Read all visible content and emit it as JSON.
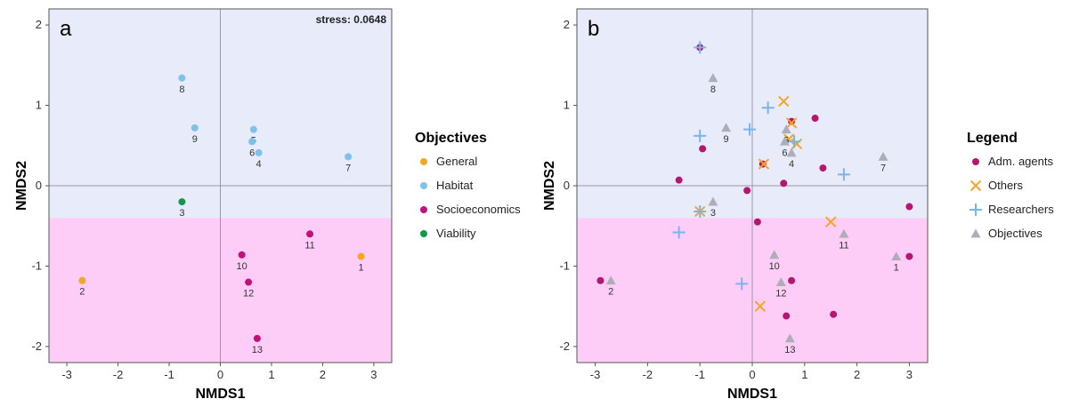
{
  "chart_data": [
    {
      "type": "scatter",
      "panel_label": "a",
      "xlabel": "NMDS1",
      "ylabel": "NMDS2",
      "xlim": [
        -3.35,
        3.35
      ],
      "ylim": [
        -2.2,
        2.2
      ],
      "xticks": [
        -3,
        -2,
        -1,
        0,
        1,
        2,
        3
      ],
      "yticks": [
        -2,
        -1,
        0,
        1,
        2
      ],
      "shaded_bands": [
        {
          "y_from": -0.4,
          "y_to": 2.2,
          "color": "#e8ebfa"
        },
        {
          "y_from": -2.2,
          "y_to": -0.4,
          "color": "#fdcdf7"
        }
      ],
      "annotation": "stress: 0.0648",
      "legend_title": "Objectives",
      "legend_position": "right",
      "series": [
        {
          "name": "General",
          "color": "#f5a623",
          "marker": "circle",
          "points": [
            {
              "x": -2.7,
              "y": -1.18,
              "label": "2"
            },
            {
              "x": 2.75,
              "y": -0.88,
              "label": "1"
            }
          ]
        },
        {
          "name": "Habitat",
          "color": "#7ec1ea",
          "marker": "circle",
          "points": [
            {
              "x": -0.75,
              "y": 1.34,
              "label": "8"
            },
            {
              "x": -0.5,
              "y": 0.72,
              "label": "9"
            },
            {
              "x": 0.65,
              "y": 0.7,
              "label": "5"
            },
            {
              "x": 0.62,
              "y": 0.55,
              "label": "6"
            },
            {
              "x": 0.75,
              "y": 0.41,
              "label": "4"
            },
            {
              "x": 2.5,
              "y": 0.36,
              "label": "7"
            }
          ]
        },
        {
          "name": "Socioeconomics",
          "color": "#c2127a",
          "marker": "circle",
          "points": [
            {
              "x": 1.75,
              "y": -0.6,
              "label": "11"
            },
            {
              "x": 0.42,
              "y": -0.86,
              "label": "10"
            },
            {
              "x": 0.55,
              "y": -1.2,
              "label": "12"
            },
            {
              "x": 0.72,
              "y": -1.9,
              "label": "13"
            }
          ]
        },
        {
          "name": "Viability",
          "color": "#0d9b4b",
          "marker": "circle",
          "points": [
            {
              "x": -0.75,
              "y": -0.2,
              "label": "3"
            }
          ]
        }
      ]
    },
    {
      "type": "scatter",
      "panel_label": "b",
      "xlabel": "NMDS1",
      "ylabel": "NMDS2",
      "xlim": [
        -3.35,
        3.35
      ],
      "ylim": [
        -2.2,
        2.2
      ],
      "xticks": [
        -3,
        -2,
        -1,
        0,
        1,
        2,
        3
      ],
      "yticks": [
        -2,
        -1,
        0,
        1,
        2
      ],
      "shaded_bands": [
        {
          "y_from": -0.4,
          "y_to": 2.2,
          "color": "#e8ebfa"
        },
        {
          "y_from": -2.2,
          "y_to": -0.4,
          "color": "#fdcdf7"
        }
      ],
      "legend_title": "Legend",
      "legend_position": "right",
      "series": [
        {
          "name": "Adm. agents",
          "color": "#b5166f",
          "marker": "circle",
          "points": [
            {
              "x": -1.0,
              "y": 1.72
            },
            {
              "x": -0.95,
              "y": 0.46
            },
            {
              "x": -1.4,
              "y": 0.07
            },
            {
              "x": -0.1,
              "y": -0.06
            },
            {
              "x": 0.2,
              "y": 0.27
            },
            {
              "x": 0.6,
              "y": 0.03
            },
            {
              "x": 0.75,
              "y": 0.8
            },
            {
              "x": 1.2,
              "y": 0.84
            },
            {
              "x": 1.35,
              "y": 0.22
            },
            {
              "x": 0.1,
              "y": -0.45
            },
            {
              "x": 3.0,
              "y": -0.26
            },
            {
              "x": 3.0,
              "y": -0.88
            },
            {
              "x": -2.9,
              "y": -1.18
            },
            {
              "x": 0.75,
              "y": -1.18
            },
            {
              "x": 0.65,
              "y": -1.62
            },
            {
              "x": 1.55,
              "y": -1.6
            }
          ]
        },
        {
          "name": "Others",
          "color": "#f5a623",
          "marker": "x",
          "points": [
            {
              "x": 0.6,
              "y": 1.05
            },
            {
              "x": 0.75,
              "y": 0.78
            },
            {
              "x": 0.7,
              "y": 0.58
            },
            {
              "x": 0.85,
              "y": 0.52
            },
            {
              "x": 0.22,
              "y": 0.27
            },
            {
              "x": 1.5,
              "y": -0.45
            },
            {
              "x": 0.15,
              "y": -1.5
            },
            {
              "x": -1.0,
              "y": -0.32
            }
          ]
        },
        {
          "name": "Researchers",
          "color": "#7ab4ea",
          "marker": "plus",
          "points": [
            {
              "x": -1.0,
              "y": 1.72
            },
            {
              "x": 0.3,
              "y": 0.97
            },
            {
              "x": -0.05,
              "y": 0.7
            },
            {
              "x": -1.0,
              "y": 0.62
            },
            {
              "x": 0.8,
              "y": 0.55
            },
            {
              "x": 1.75,
              "y": 0.14
            },
            {
              "x": -1.0,
              "y": -0.32
            },
            {
              "x": -1.4,
              "y": -0.58
            },
            {
              "x": -0.2,
              "y": -1.22
            }
          ]
        },
        {
          "name": "Objectives",
          "color": "#aeaeb8",
          "marker": "triangle",
          "points": [
            {
              "x": -0.75,
              "y": 1.34,
              "label": "8"
            },
            {
              "x": -0.5,
              "y": 0.72,
              "label": "9"
            },
            {
              "x": 0.65,
              "y": 0.7,
              "label": "5"
            },
            {
              "x": 0.62,
              "y": 0.55,
              "label": "6"
            },
            {
              "x": 0.75,
              "y": 0.41,
              "label": "4"
            },
            {
              "x": 2.5,
              "y": 0.36,
              "label": "7"
            },
            {
              "x": -0.75,
              "y": -0.2,
              "label": "3"
            },
            {
              "x": 1.75,
              "y": -0.6,
              "label": "11"
            },
            {
              "x": 2.75,
              "y": -0.88,
              "label": "1"
            },
            {
              "x": 0.42,
              "y": -0.86,
              "label": "10"
            },
            {
              "x": 0.55,
              "y": -1.2,
              "label": "12"
            },
            {
              "x": -2.7,
              "y": -1.18,
              "label": "2"
            },
            {
              "x": 0.72,
              "y": -1.9,
              "label": "13"
            }
          ]
        }
      ]
    }
  ]
}
